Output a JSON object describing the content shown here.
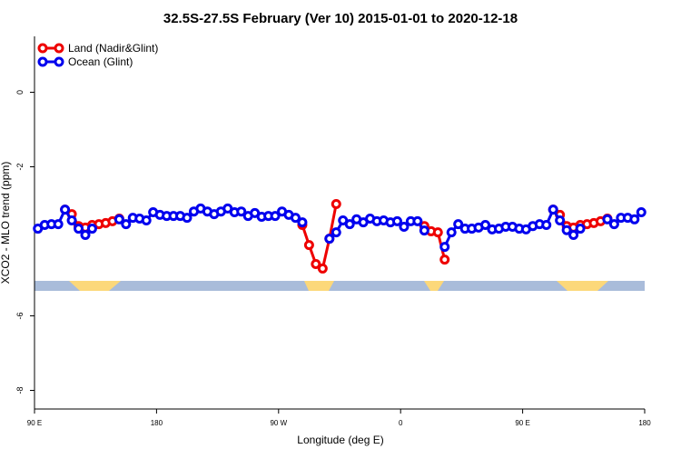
{
  "chart_data": {
    "type": "line",
    "title": "32.5S-27.5S February (Ver 10)   2015-01-01 to 2020-12-18",
    "xlabel": "Longitude (deg E)",
    "ylabel": "XCO2 - MLO trend (ppm)",
    "x": [
      92.5,
      97.5,
      102.5,
      107.5,
      112.5,
      117.5,
      122.5,
      127.5,
      132.5,
      137.5,
      142.5,
      147.5,
      152.5,
      157.5,
      162.5,
      167.5,
      172.5,
      177.5,
      182.5,
      187.5,
      192.5,
      197.5,
      202.5,
      207.5,
      212.5,
      217.5,
      222.5,
      227.5,
      232.5,
      237.5,
      242.5,
      247.5,
      252.5,
      257.5,
      262.5,
      267.5,
      272.5,
      277.5,
      282.5,
      287.5,
      292.5,
      297.5,
      302.5,
      307.5,
      312.5,
      317.5,
      322.5,
      327.5,
      332.5,
      337.5,
      342.5,
      347.5,
      352.5,
      357.5,
      362.5,
      367.5,
      372.5,
      377.5,
      382.5,
      387.5,
      392.5,
      397.5,
      402.5,
      407.5,
      412.5,
      417.5,
      422.5,
      427.5,
      432.5,
      437.5,
      442.5,
      447.5,
      452.5,
      457.5,
      462.5,
      467.5,
      472.5,
      477.5,
      482.5,
      487.5,
      492.5,
      497.5,
      502.5,
      507.5,
      512.5,
      517.5,
      522.5,
      527.5,
      532.5,
      537.5
    ],
    "series": [
      {
        "name": "Land (Nadir&Glint)",
        "color": "#ee0000",
        "values": [
          null,
          null,
          null,
          null,
          -3.15,
          -3.27,
          -3.59,
          -3.63,
          -3.56,
          -3.54,
          -3.51,
          -3.46,
          -3.39,
          null,
          null,
          null,
          null,
          null,
          null,
          null,
          null,
          null,
          null,
          null,
          null,
          null,
          null,
          null,
          null,
          null,
          null,
          null,
          null,
          null,
          null,
          null,
          null,
          null,
          null,
          -3.56,
          -4.1,
          -4.61,
          -4.73,
          -3.93,
          -3.0,
          null,
          null,
          null,
          null,
          null,
          null,
          null,
          null,
          null,
          null,
          null,
          null,
          -3.59,
          -3.73,
          -3.76,
          -4.49,
          null,
          null,
          null,
          null,
          null,
          null,
          null,
          null,
          null,
          null,
          null,
          null,
          null,
          null,
          null,
          -3.15,
          -3.29,
          -3.59,
          -3.63,
          -3.56,
          -3.54,
          -3.51,
          -3.46,
          -3.39,
          null,
          null,
          null,
          null,
          null
        ]
      },
      {
        "name": "Ocean (Glint)",
        "color": "#0000ee",
        "values": [
          -3.66,
          -3.56,
          -3.54,
          -3.54,
          -3.15,
          -3.44,
          -3.66,
          -3.83,
          -3.66,
          null,
          null,
          null,
          -3.41,
          -3.54,
          -3.37,
          -3.39,
          -3.44,
          -3.22,
          -3.29,
          -3.32,
          -3.32,
          -3.32,
          -3.37,
          -3.2,
          -3.12,
          -3.2,
          -3.27,
          -3.2,
          -3.12,
          -3.22,
          -3.2,
          -3.32,
          -3.24,
          -3.34,
          -3.32,
          -3.32,
          -3.2,
          -3.29,
          -3.37,
          -3.49,
          null,
          null,
          null,
          -3.93,
          -3.76,
          -3.44,
          -3.54,
          -3.41,
          -3.49,
          -3.39,
          -3.46,
          -3.44,
          -3.49,
          -3.46,
          -3.61,
          -3.46,
          -3.46,
          -3.71,
          null,
          null,
          -4.15,
          -3.76,
          -3.54,
          -3.66,
          -3.66,
          -3.63,
          -3.56,
          -3.68,
          -3.66,
          -3.61,
          -3.61,
          -3.66,
          -3.68,
          -3.59,
          -3.54,
          -3.56,
          -3.15,
          -3.44,
          -3.7,
          -3.83,
          -3.66,
          null,
          null,
          null,
          -3.41,
          -3.54,
          -3.37,
          -3.37,
          -3.41,
          -3.22
        ]
      }
    ],
    "xlim": [
      90,
      540
    ],
    "xticks": [
      {
        "value": 90,
        "label": "90 E"
      },
      180,
      {
        "value": 270,
        "label": "90 W"
      },
      {
        "value": 360,
        "label": "0"
      },
      {
        "value": 450,
        "label": "90 E"
      },
      {
        "value": 540,
        "label": "180"
      }
    ],
    "ylim": [
      -8.5,
      1.5
    ],
    "yticks": [
      0,
      -2,
      -6,
      -8
    ],
    "legend": "upper left"
  }
}
